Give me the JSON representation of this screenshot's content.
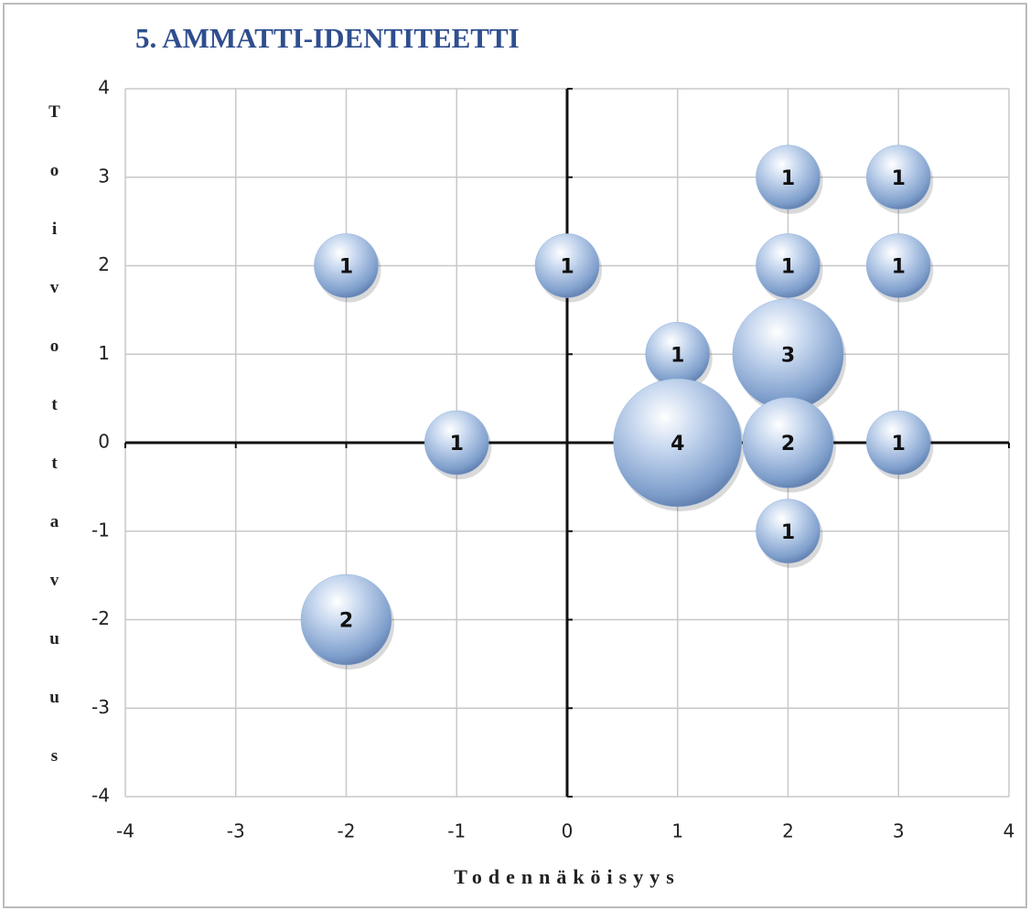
{
  "chart_data": {
    "type": "bubble",
    "title": "5. AMMATTI-IDENTITEETTI",
    "x_label": "Todennäköisyys",
    "y_label": "Toivottavuus",
    "series": [
      {
        "color": "#8fb0dc",
        "x": [
          -2,
          0,
          2,
          3,
          2,
          3,
          1,
          2,
          -1,
          1,
          2,
          3,
          2,
          -2
        ],
        "values": [
          2,
          2,
          3,
          3,
          2,
          2,
          1,
          1,
          0,
          0,
          0,
          0,
          -1,
          -2
        ],
        "sizes": [
          1,
          1,
          1,
          1,
          1,
          1,
          1,
          3,
          1,
          4,
          2,
          1,
          1,
          2
        ]
      }
    ],
    "xlim": [
      -4,
      4
    ],
    "xticks": [
      -4,
      -3,
      -2,
      -1,
      0,
      1,
      2,
      3,
      4
    ],
    "ylim": [
      -4,
      4
    ],
    "yticks": [
      -4,
      -3,
      -2,
      -1,
      0,
      1,
      2,
      3,
      4
    ],
    "grid": true
  }
}
